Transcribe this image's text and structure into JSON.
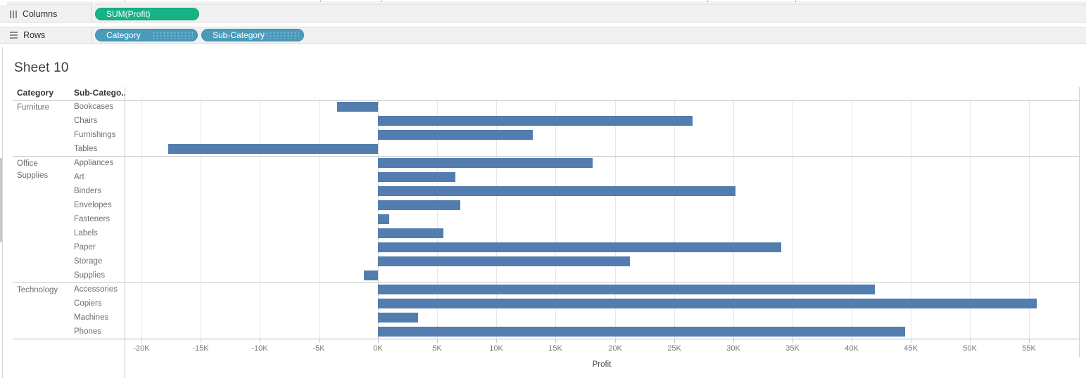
{
  "shelves": {
    "columns_label": "Columns",
    "rows_label": "Rows",
    "columns_pills": [
      {
        "label": "SUM(Profit)",
        "type": "measure"
      }
    ],
    "rows_pills": [
      {
        "label": "Category",
        "type": "dim"
      },
      {
        "label": "Sub-Category",
        "type": "dim"
      }
    ],
    "icons": {
      "columns": "columns-grid-icon",
      "rows": "rows-list-icon"
    }
  },
  "sheet": {
    "title": "Sheet 10"
  },
  "colors": {
    "bar": "#527dae",
    "measure_pill": "#17b286",
    "dimension_pill": "#4a9aba",
    "shelf_background": "#f1f1f1"
  },
  "chart_data": {
    "type": "bar",
    "orientation": "horizontal",
    "title": "Sheet 10",
    "row_headers": [
      "Category",
      "Sub-Catego.."
    ],
    "xlabel": "Profit",
    "xlim": [
      -21400,
      59200
    ],
    "grid": true,
    "x_tick_values": [
      -20000,
      -15000,
      -10000,
      -5000,
      0,
      5000,
      10000,
      15000,
      20000,
      25000,
      30000,
      35000,
      40000,
      45000,
      50000,
      55000
    ],
    "x_tick_labels": [
      "-20K",
      "-15K",
      "-10K",
      "-5K",
      "0K",
      "5K",
      "10K",
      "15K",
      "20K",
      "25K",
      "30K",
      "35K",
      "40K",
      "45K",
      "50K",
      "55K"
    ],
    "groups": [
      {
        "category": "Furniture",
        "items": [
          {
            "label": "Bookcases",
            "value": -3473
          },
          {
            "label": "Chairs",
            "value": 26590
          },
          {
            "label": "Furnishings",
            "value": 13059
          },
          {
            "label": "Tables",
            "value": -17725
          }
        ]
      },
      {
        "category": "Office Supplies",
        "items": [
          {
            "label": "Appliances",
            "value": 18138
          },
          {
            "label": "Art",
            "value": 6528
          },
          {
            "label": "Binders",
            "value": 30222
          },
          {
            "label": "Envelopes",
            "value": 6964
          },
          {
            "label": "Fasteners",
            "value": 950
          },
          {
            "label": "Labels",
            "value": 5546
          },
          {
            "label": "Paper",
            "value": 34054
          },
          {
            "label": "Storage",
            "value": 21279
          },
          {
            "label": "Supplies",
            "value": -1189
          }
        ]
      },
      {
        "category": "Technology",
        "items": [
          {
            "label": "Accessories",
            "value": 41937
          },
          {
            "label": "Copiers",
            "value": 55618
          },
          {
            "label": "Machines",
            "value": 3385
          },
          {
            "label": "Phones",
            "value": 44516
          }
        ]
      }
    ]
  }
}
